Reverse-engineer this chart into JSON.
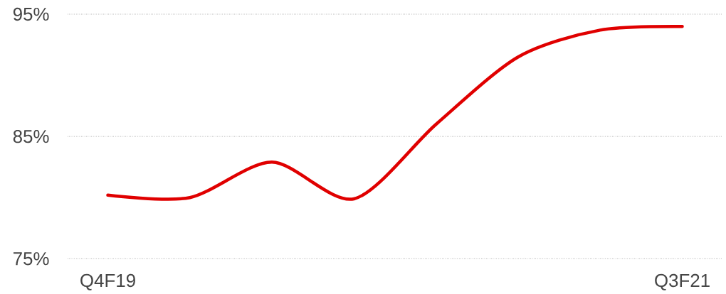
{
  "chart_data": {
    "type": "line",
    "categories": [
      "Q4F19",
      null,
      null,
      null,
      null,
      null,
      null,
      "Q3F21"
    ],
    "series": [
      {
        "values": [
          80.2,
          80.0,
          82.9,
          79.9,
          86.0,
          91.5,
          93.7,
          94.0
        ],
        "color": "#e00000"
      }
    ],
    "ylim": [
      75,
      95
    ],
    "yticks": [
      {
        "value": 75,
        "label": "75%"
      },
      {
        "value": 85,
        "label": "85%"
      },
      {
        "value": 95,
        "label": "95%"
      }
    ],
    "grid": "y"
  }
}
